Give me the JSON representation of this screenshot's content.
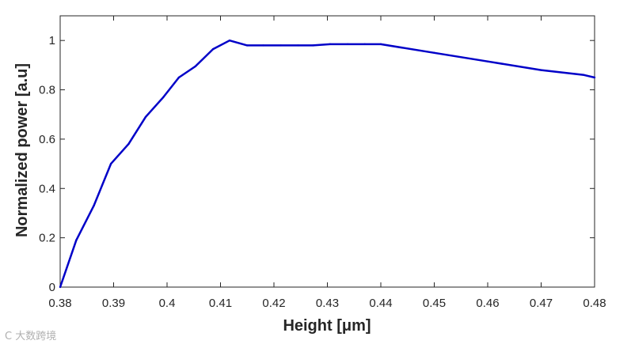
{
  "chart_data": {
    "type": "line",
    "title": "",
    "xlabel": "Height [μm]",
    "ylabel": "Normalized power [a.u]",
    "xlim": [
      0.38,
      0.48
    ],
    "ylim": [
      0,
      1.1
    ],
    "xticks": [
      "0.38",
      "0.39",
      "0.4",
      "0.41",
      "0.42",
      "0.43",
      "0.44",
      "0.45",
      "0.46",
      "0.47",
      "0.48"
    ],
    "yticks": [
      "0",
      "0.2",
      "0.4",
      "0.6",
      "0.8",
      "1"
    ],
    "grid": false,
    "series": [
      {
        "color": "#0000c8",
        "x": [
          0.38,
          0.383,
          0.3863,
          0.3895,
          0.3928,
          0.396,
          0.3993,
          0.4022,
          0.4053,
          0.4086,
          0.4117,
          0.415,
          0.418,
          0.4213,
          0.4245,
          0.4273,
          0.4305,
          0.4338,
          0.437,
          0.44,
          0.45,
          0.46,
          0.47,
          0.478,
          0.48
        ],
        "y": [
          0.0,
          0.19,
          0.33,
          0.5,
          0.58,
          0.69,
          0.77,
          0.85,
          0.895,
          0.965,
          1.0,
          0.98,
          0.98,
          0.98,
          0.98,
          0.98,
          0.985,
          0.985,
          0.985,
          0.985,
          0.95,
          0.915,
          0.88,
          0.86,
          0.85
        ]
      }
    ]
  },
  "watermark": "C 大数跨境"
}
